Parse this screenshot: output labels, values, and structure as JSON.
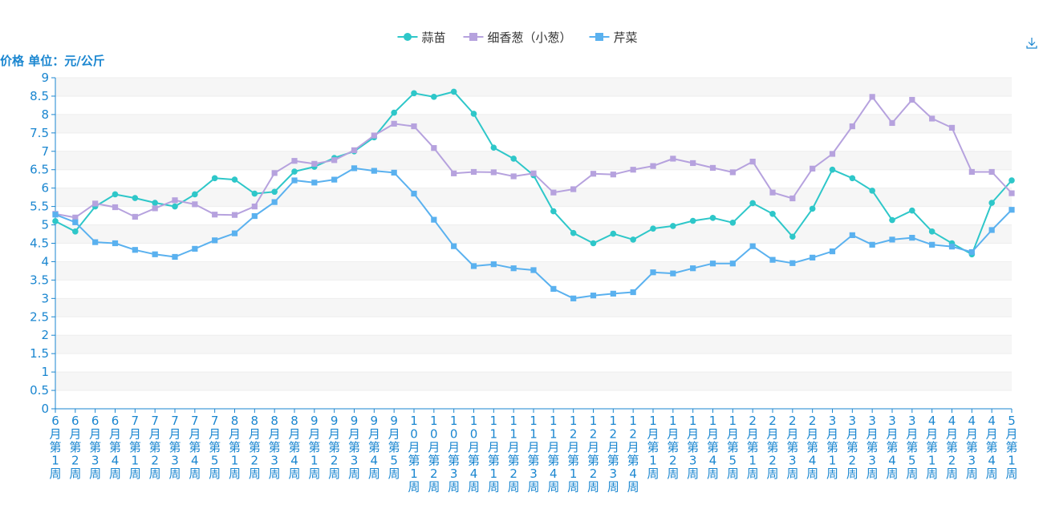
{
  "chart_data": {
    "type": "line",
    "ylabel": "价格 单位：元/公斤",
    "ylim": [
      0,
      9
    ],
    "y_ticks": [
      "0",
      "0.5",
      "1",
      "1.5",
      "2",
      "2.5",
      "3",
      "3.5",
      "4",
      "4.5",
      "5",
      "5.5",
      "6",
      "6.5",
      "7",
      "7.5",
      "8",
      "8.5",
      "9"
    ],
    "categories": [
      "6月第1周",
      "6月第2周",
      "6月第3周",
      "6月第4周",
      "7月第1周",
      "7月第2周",
      "7月第3周",
      "7月第4周",
      "7月第5周",
      "8月第1周",
      "8月第2周",
      "8月第3周",
      "8月第4周",
      "9月第1周",
      "9月第2周",
      "9月第3周",
      "9月第4周",
      "9月第5周",
      "10月第1周",
      "10月第2周",
      "10月第3周",
      "10月第4周",
      "11月第1周",
      "11月第2周",
      "11月第3周",
      "11月第4周",
      "12月第1周",
      "12月第2周",
      "12月第3周",
      "12月第4周",
      "1月第1周",
      "1月第2周",
      "1月第3周",
      "1月第4周",
      "1月第5周",
      "2月第1周",
      "2月第2周",
      "2月第3周",
      "2月第4周",
      "3月第1周",
      "3月第2周",
      "3月第3周",
      "3月第4周",
      "3月第5周",
      "4月第1周",
      "4月第2周",
      "4月第3周",
      "4月第4周",
      "5月第1周"
    ],
    "series": [
      {
        "name": "蒜苗",
        "color": "#2ec7c9",
        "marker": "circle",
        "values": [
          5.1,
          4.82,
          5.5,
          5.83,
          5.73,
          5.6,
          5.5,
          5.83,
          6.27,
          6.23,
          5.85,
          5.9,
          6.45,
          6.58,
          6.82,
          7.0,
          7.38,
          8.05,
          8.58,
          8.48,
          8.62,
          8.02,
          7.1,
          6.8,
          6.35,
          5.37,
          4.78,
          4.5,
          4.76,
          4.6,
          4.9,
          4.97,
          5.11,
          5.19,
          5.06,
          5.59,
          5.3,
          4.68,
          5.44,
          6.5,
          6.27,
          5.93,
          5.13,
          5.39,
          4.82,
          4.5,
          4.2,
          5.6,
          6.21
        ]
      },
      {
        "name": "细香葱（小葱）",
        "color": "#b6a2de",
        "marker": "square",
        "values": [
          5.3,
          5.2,
          5.58,
          5.48,
          5.22,
          5.45,
          5.67,
          5.56,
          5.28,
          5.27,
          5.5,
          6.41,
          6.74,
          6.66,
          6.76,
          7.03,
          7.43,
          7.75,
          7.68,
          7.09,
          6.4,
          6.44,
          6.43,
          6.32,
          6.4,
          5.88,
          5.97,
          6.39,
          6.37,
          6.5,
          6.6,
          6.8,
          6.68,
          6.55,
          6.43,
          6.72,
          5.88,
          5.72,
          6.53,
          6.93,
          7.68,
          8.48,
          7.77,
          8.4,
          7.89,
          7.64,
          6.44,
          6.44,
          5.86
        ]
      },
      {
        "name": "芹菜",
        "color": "#5ab1ef",
        "marker": "square",
        "values": [
          5.28,
          5.07,
          4.53,
          4.5,
          4.32,
          4.2,
          4.13,
          4.35,
          4.58,
          4.77,
          5.24,
          5.62,
          6.21,
          6.15,
          6.23,
          6.54,
          6.47,
          6.42,
          5.85,
          5.14,
          4.42,
          3.88,
          3.93,
          3.82,
          3.77,
          3.26,
          3.0,
          3.08,
          3.13,
          3.17,
          3.71,
          3.68,
          3.82,
          3.95,
          3.95,
          4.42,
          4.05,
          3.96,
          4.11,
          4.28,
          4.72,
          4.46,
          4.6,
          4.65,
          4.46,
          4.41,
          4.26,
          4.86,
          5.41
        ]
      }
    ],
    "legend_position": "top-center",
    "grid": true,
    "download_icon": "download-icon"
  }
}
